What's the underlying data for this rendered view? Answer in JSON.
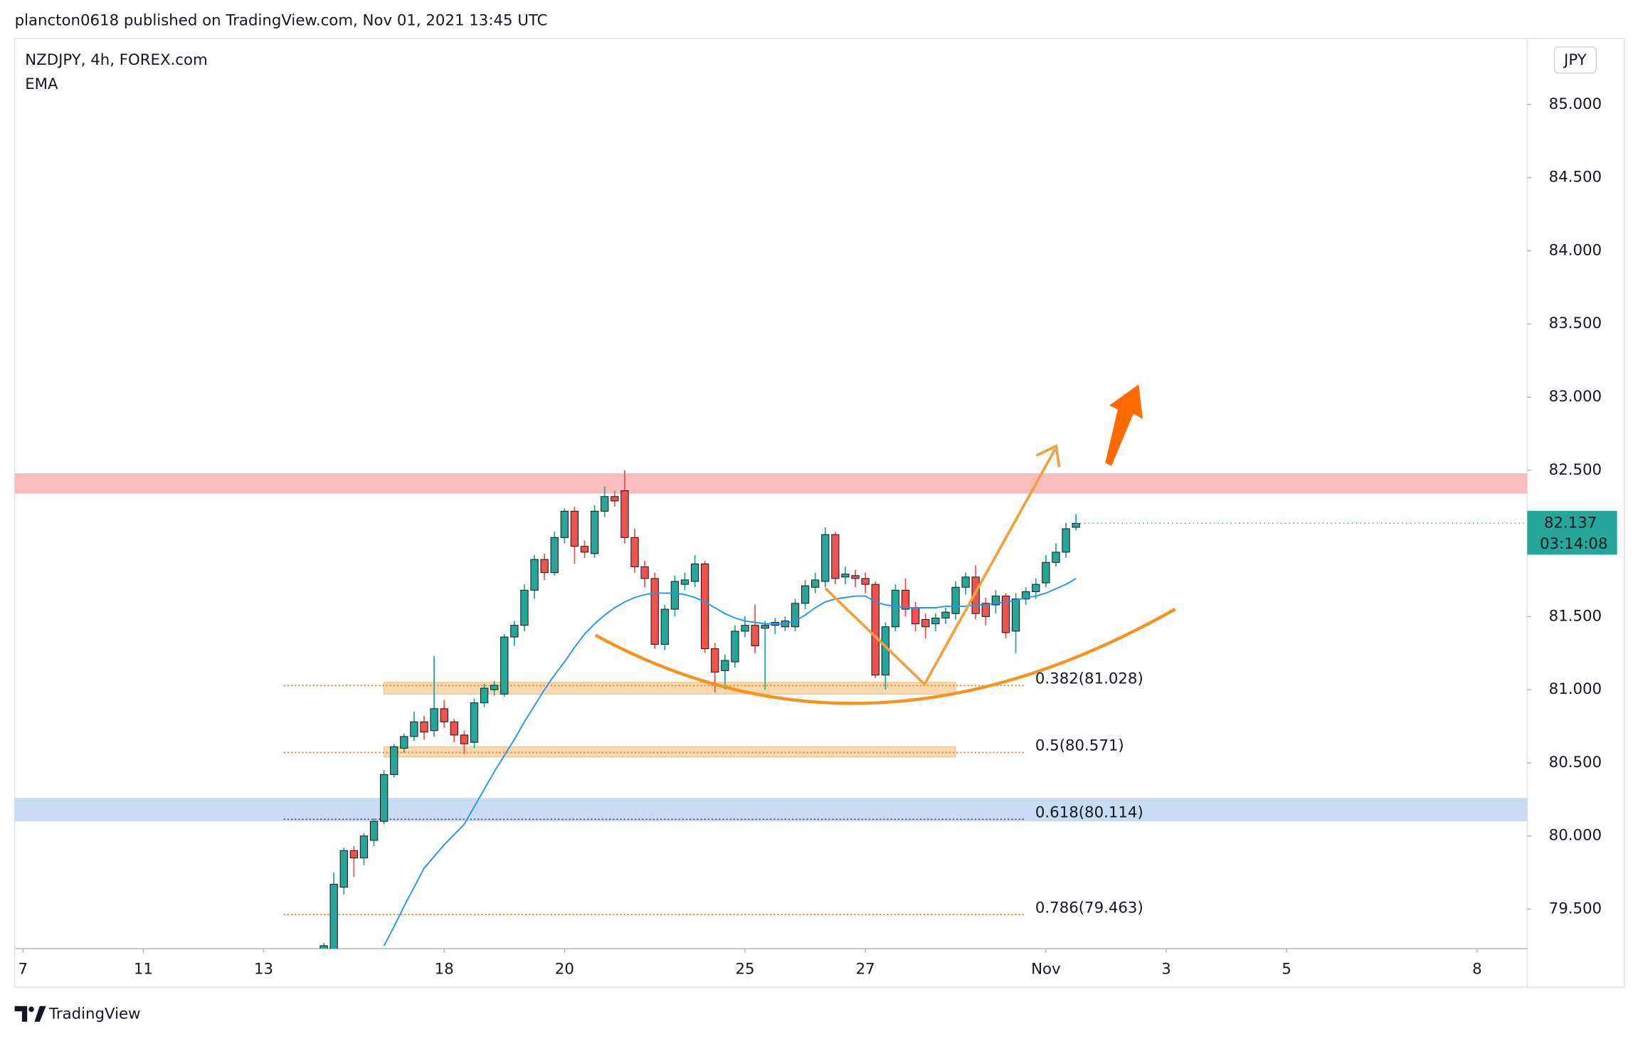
{
  "chart_data": {
    "type": "candlestick",
    "published": "plancton0618 published on TradingView.com, Nov 01, 2021 13:45 UTC",
    "title": "NZDJPY, 4h, FOREX.com",
    "indicator": "EMA",
    "currency": "JPY",
    "brand": "TradingView",
    "xlim": [
      -30.83,
      120
    ],
    "xticks": [
      {
        "value": -30,
        "label": "7"
      },
      {
        "value": -18,
        "label": "11"
      },
      {
        "value": -6,
        "label": "13"
      },
      {
        "value": 12,
        "label": "18"
      },
      {
        "value": 24,
        "label": "20"
      },
      {
        "value": 42,
        "label": "25"
      },
      {
        "value": 54,
        "label": "27"
      },
      {
        "value": 72,
        "label": "Nov"
      },
      {
        "value": 84,
        "label": "3"
      },
      {
        "value": 96,
        "label": "5"
      },
      {
        "value": 115,
        "label": "8"
      }
    ],
    "ylim": [
      79.23,
      85.45
    ],
    "yticks": [
      {
        "value": 79.5,
        "label": "79.500"
      },
      {
        "value": 80,
        "label": "80.000"
      },
      {
        "value": 80.5,
        "label": "80.500"
      },
      {
        "value": 81,
        "label": "81.000"
      },
      {
        "value": 81.5,
        "label": "81.500"
      },
      {
        "value": 82,
        "label": "82.000"
      },
      {
        "value": 82.5,
        "label": "82.500"
      },
      {
        "value": 83,
        "label": "83.000"
      },
      {
        "value": 83.5,
        "label": "83.500"
      },
      {
        "value": 84,
        "label": "84.000"
      },
      {
        "value": 84.5,
        "label": "84.500"
      },
      {
        "value": 85,
        "label": "85.000"
      }
    ],
    "up_color": "#26a69a",
    "down_color": "#ef5350",
    "candles": {
      "open": [
        79.2,
        79.2,
        79.65,
        79.9,
        79.85,
        79.97,
        80.1,
        80.42,
        80.6,
        80.68,
        80.78,
        80.72,
        80.87,
        80.78,
        80.69,
        80.64,
        80.91,
        81.0,
        80.97,
        81.36,
        81.44,
        81.68,
        81.89,
        81.8,
        82.04,
        82.22,
        81.98,
        81.93,
        82.22,
        82.32,
        82.36,
        82.04,
        81.84,
        81.76,
        81.31,
        81.55,
        81.72,
        81.74,
        81.86,
        81.28,
        81.13,
        81.19,
        81.4,
        81.44,
        81.42,
        81.44,
        81.43,
        81.43,
        81.59,
        81.7,
        81.74,
        82.06,
        81.77,
        81.78,
        81.76,
        81.72,
        81.1,
        81.43,
        81.68,
        81.56,
        81.48,
        81.45,
        81.49,
        81.52,
        81.7,
        81.77,
        81.59,
        81.58,
        81.64,
        81.4,
        81.62,
        81.67,
        81.73,
        81.87,
        81.94,
        82.11
      ],
      "high": [
        79.27,
        79.75,
        79.92,
        79.93,
        80.02,
        80.12,
        80.45,
        80.63,
        80.7,
        80.85,
        80.82,
        81.23,
        80.93,
        80.8,
        80.72,
        80.94,
        81.04,
        81.06,
        81.38,
        81.47,
        81.72,
        81.92,
        81.93,
        82.08,
        82.24,
        82.25,
        82.02,
        82.26,
        82.39,
        82.36,
        82.5,
        82.1,
        81.88,
        81.8,
        81.58,
        81.78,
        81.8,
        81.92,
        81.88,
        81.32,
        81.24,
        81.44,
        81.5,
        81.58,
        81.47,
        81.49,
        81.5,
        81.62,
        81.75,
        81.8,
        82.11,
        82.08,
        81.84,
        81.82,
        81.8,
        81.74,
        81.46,
        81.72,
        81.76,
        81.6,
        81.52,
        81.52,
        81.56,
        81.74,
        81.8,
        81.85,
        81.63,
        81.68,
        81.66,
        81.66,
        81.7,
        81.76,
        81.92,
        82.0,
        82.14,
        82.2
      ],
      "low": [
        79.18,
        79.15,
        79.6,
        79.72,
        79.8,
        79.93,
        80.08,
        80.4,
        80.57,
        80.65,
        80.66,
        80.68,
        80.74,
        80.64,
        80.56,
        80.6,
        80.88,
        80.96,
        80.95,
        81.3,
        81.4,
        81.62,
        81.75,
        81.78,
        82.0,
        81.86,
        81.9,
        81.9,
        82.18,
        82.25,
        82.0,
        81.8,
        81.7,
        81.28,
        81.27,
        81.5,
        81.68,
        81.7,
        81.25,
        80.98,
        81.0,
        81.15,
        81.36,
        81.25,
        81.0,
        81.38,
        81.4,
        81.4,
        81.55,
        81.66,
        81.7,
        81.72,
        81.72,
        81.7,
        81.66,
        81.08,
        81.0,
        81.4,
        81.5,
        81.4,
        81.35,
        81.4,
        81.45,
        81.48,
        81.65,
        81.48,
        81.44,
        81.52,
        81.35,
        81.25,
        81.58,
        81.62,
        81.7,
        81.84,
        81.9,
        82.09
      ],
      "close": [
        79.25,
        79.67,
        79.9,
        79.85,
        80.0,
        80.1,
        80.42,
        80.61,
        80.68,
        80.78,
        80.71,
        80.87,
        80.78,
        80.69,
        80.63,
        80.91,
        81.01,
        81.03,
        81.36,
        81.44,
        81.68,
        81.89,
        81.8,
        82.04,
        82.22,
        81.98,
        81.94,
        82.22,
        82.32,
        82.29,
        82.04,
        81.84,
        81.76,
        81.31,
        81.55,
        81.74,
        81.75,
        81.86,
        81.28,
        81.12,
        81.2,
        81.4,
        81.44,
        81.3,
        81.44,
        81.46,
        81.47,
        81.59,
        81.71,
        81.75,
        82.06,
        81.76,
        81.79,
        81.76,
        81.72,
        81.1,
        81.43,
        81.68,
        81.55,
        81.45,
        81.43,
        81.49,
        81.53,
        81.7,
        81.77,
        81.52,
        81.5,
        81.64,
        81.39,
        81.62,
        81.67,
        81.72,
        81.87,
        81.94,
        82.1,
        82.137
      ]
    },
    "ema": {
      "name": "EMA",
      "color": "#2196f3",
      "values": [
        null,
        null,
        null,
        null,
        null,
        null,
        79.25,
        79.38,
        79.52,
        79.65,
        79.78,
        79.86,
        79.94,
        80.01,
        80.08,
        80.2,
        80.32,
        80.44,
        80.55,
        80.66,
        80.78,
        80.89,
        81.0,
        81.1,
        81.19,
        81.29,
        81.38,
        81.45,
        81.51,
        81.56,
        81.6,
        81.63,
        81.65,
        81.66,
        81.66,
        81.66,
        81.65,
        81.63,
        81.6,
        81.56,
        81.52,
        81.49,
        81.47,
        81.46,
        81.45,
        81.45,
        81.45,
        81.47,
        81.51,
        81.56,
        81.6,
        81.62,
        81.63,
        81.64,
        81.64,
        81.6,
        81.58,
        81.57,
        81.56,
        81.56,
        81.56,
        81.56,
        81.57,
        81.57,
        81.57,
        81.58,
        81.58,
        81.59,
        81.6,
        81.61,
        81.63,
        81.64,
        81.66,
        81.69,
        81.72,
        81.76
      ]
    },
    "zones": [
      {
        "low": 82.34,
        "high": 82.48,
        "color": "#f8bcbc"
      },
      {
        "low": 80.1,
        "high": 80.26,
        "color": "#c8dcf6"
      },
      {
        "low": 80.97,
        "high": 81.05,
        "x": [
          6,
          63
        ],
        "color": "#fad9b0"
      },
      {
        "low": 80.54,
        "high": 80.61,
        "x": [
          6,
          63
        ],
        "color": "#fad9b0"
      }
    ],
    "fib_x": [
      -4,
      70
    ],
    "fib_levels": [
      {
        "value": 81.028,
        "label": "0.382(81.028)",
        "color": "#f57c00"
      },
      {
        "value": 80.571,
        "label": "0.5(80.571)",
        "color": "#f57c00"
      },
      {
        "value": 80.114,
        "label": "0.618(80.114)",
        "color": "#555555"
      },
      {
        "value": 79.463,
        "label": "0.786(79.463)",
        "color": "#f57c00"
      }
    ],
    "fib_label_color": "#f57c00",
    "last_price": 82.137,
    "countdown": "03:14:08"
  }
}
